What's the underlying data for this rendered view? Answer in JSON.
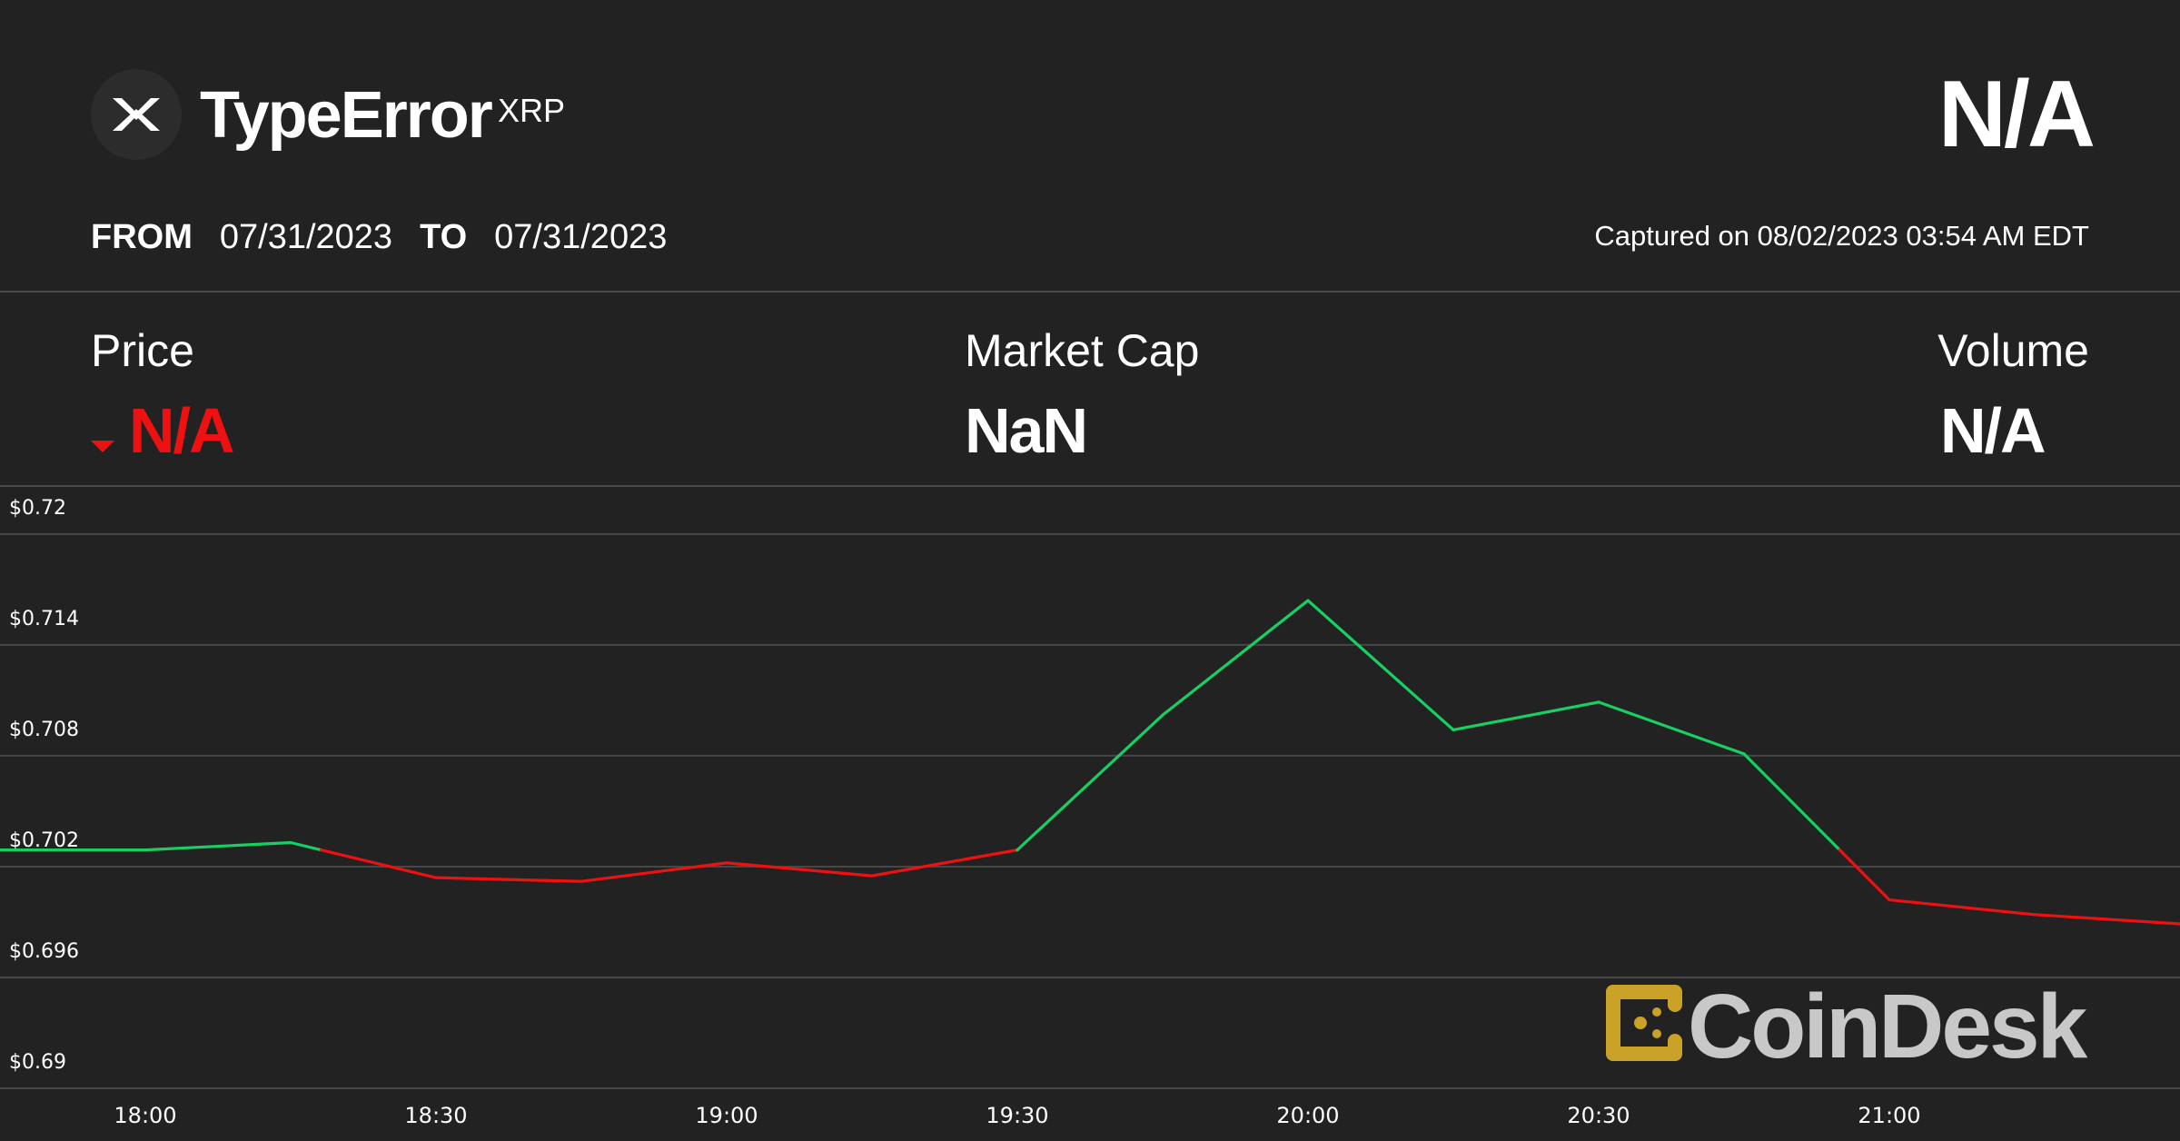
{
  "header": {
    "coin_name": "TypeError",
    "symbol": "XRP",
    "price_display": "N/A",
    "logo_icon": "xrp-logo-icon"
  },
  "range": {
    "from_label": "FROM",
    "from_date": "07/31/2023",
    "to_label": "TO",
    "to_date": "07/31/2023",
    "captured": "Captured on 08/02/2023 03:54 AM EDT"
  },
  "stats": {
    "price_label": "Price",
    "price_value": "N/A",
    "price_color": "#ee1111",
    "market_cap_label": "Market Cap",
    "market_cap_value": "NaN",
    "volume_label": "Volume",
    "volume_value": "N/A"
  },
  "watermark": {
    "text": "CoinDesk",
    "icon_color": "#c9a227"
  },
  "chart_data": {
    "type": "line",
    "y_ticks": [
      "$0.72",
      "$0.714",
      "$0.708",
      "$0.702",
      "$0.696",
      "$0.69"
    ],
    "x_ticks": [
      "18:00",
      "18:30",
      "19:00",
      "19:30",
      "20:00",
      "20:30",
      "21:00"
    ],
    "ylim": [
      0.69,
      0.72
    ],
    "grid": true,
    "up_color": "#18cf64",
    "down_color": "#ee1111",
    "series": [
      {
        "x": [
          "17:45",
          "18:00",
          "18:15",
          "18:30",
          "18:45",
          "19:00",
          "19:15",
          "19:30",
          "19:45",
          "20:00",
          "20:15",
          "20:30",
          "20:45",
          "21:00",
          "21:15",
          "21:30"
        ],
        "values": [
          0.7029,
          0.7029,
          0.7033,
          0.7014,
          0.7012,
          0.7022,
          0.7015,
          0.7029,
          0.7102,
          0.7164,
          0.7094,
          0.7109,
          0.7081,
          0.7002,
          0.6994,
          0.6989
        ]
      }
    ]
  }
}
